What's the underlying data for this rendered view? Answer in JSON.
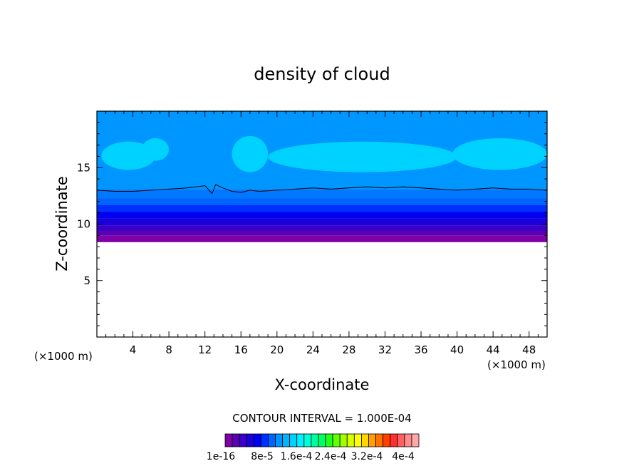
{
  "chart_data": {
    "type": "heatmap",
    "title": "density of cloud",
    "xlabel": "X-coordinate",
    "ylabel": "Z-coordinate",
    "x_unit_left": "(×1000 m)",
    "x_unit_right": "(×1000 m)",
    "xlim": [
      0,
      50
    ],
    "ylim": [
      0,
      20
    ],
    "x_ticks": [
      4,
      8,
      12,
      16,
      20,
      24,
      28,
      32,
      36,
      40,
      44,
      48
    ],
    "y_ticks": [
      5,
      10,
      15
    ],
    "contour_interval_text": "CONTOUR INTERVAL = 1.000E-04",
    "colorbar_labels": [
      "1e-16",
      "8e-5",
      "1.6e-4",
      "2.4e-4",
      "3.2e-4",
      "4e-4"
    ],
    "colorbar_colors": [
      "#8000a8",
      "#5a00b4",
      "#3a00c8",
      "#1c00dc",
      "#0000f0",
      "#0030ff",
      "#0064ff",
      "#0096ff",
      "#00b4ff",
      "#00d2ff",
      "#00f0ff",
      "#00ffd8",
      "#00ffa0",
      "#00ff64",
      "#20ff20",
      "#64ff00",
      "#a0ff00",
      "#d8ff00",
      "#ffff00",
      "#ffd800",
      "#ffa000",
      "#ff7000",
      "#ff4000",
      "#ff3030",
      "#ff6060",
      "#ff8c8c",
      "#ffa8a8"
    ],
    "layers": [
      {
        "name": "level-1",
        "color": "#8000a8",
        "z_bottom": 8.4,
        "z_top": 9.0
      },
      {
        "name": "level-2",
        "color": "#5a00b4",
        "z_bottom": 9.0,
        "z_top": 9.4
      },
      {
        "name": "level-3",
        "color": "#3a00c8",
        "z_bottom": 9.4,
        "z_top": 9.9
      },
      {
        "name": "level-4",
        "color": "#1c00dc",
        "z_bottom": 9.9,
        "z_top": 10.5
      },
      {
        "name": "level-5",
        "color": "#0000f0",
        "z_bottom": 10.5,
        "z_top": 11.1
      },
      {
        "name": "level-6",
        "color": "#0030ff",
        "z_bottom": 11.1,
        "z_top": 11.7
      },
      {
        "name": "level-7",
        "color": "#0064ff",
        "z_bottom": 11.7,
        "z_top": 12.3
      },
      {
        "name": "level-8",
        "color": "#0078ff",
        "z_bottom": 12.3,
        "z_top": 13.1
      },
      {
        "name": "level-9",
        "color": "#0096ff",
        "z_bottom": 13.1,
        "z_top": 20.0
      }
    ],
    "bright_patches": [
      {
        "x0": 0.5,
        "x1": 6.5,
        "z0": 14.8,
        "z1": 17.3,
        "color": "#00d2ff"
      },
      {
        "x0": 5.0,
        "x1": 8.0,
        "z0": 15.6,
        "z1": 17.6,
        "color": "#00d2ff"
      },
      {
        "x0": 15.0,
        "x1": 19.0,
        "z0": 14.6,
        "z1": 17.8,
        "color": "#00d2ff"
      },
      {
        "x0": 19.0,
        "x1": 40.0,
        "z0": 14.6,
        "z1": 17.3,
        "color": "#00d2ff"
      },
      {
        "x0": 39.5,
        "x1": 50.0,
        "z0": 14.8,
        "z1": 17.6,
        "color": "#00d2ff"
      }
    ],
    "contour_line": {
      "x": [
        0,
        2,
        4,
        6,
        8,
        10,
        12,
        12.8,
        13.2,
        14,
        15,
        16,
        17,
        18,
        20,
        22,
        24,
        26,
        28,
        30,
        32,
        34,
        36,
        38,
        40,
        42,
        44,
        46,
        48,
        50
      ],
      "z": [
        13.0,
        12.9,
        12.9,
        13.0,
        13.1,
        13.2,
        13.4,
        12.7,
        13.5,
        13.2,
        12.9,
        12.8,
        13.0,
        12.9,
        13.0,
        13.1,
        13.2,
        13.1,
        13.2,
        13.3,
        13.2,
        13.3,
        13.2,
        13.1,
        13.0,
        13.1,
        13.2,
        13.1,
        13.1,
        13.0
      ]
    },
    "grid": false,
    "legend": "bottom colorbar"
  }
}
